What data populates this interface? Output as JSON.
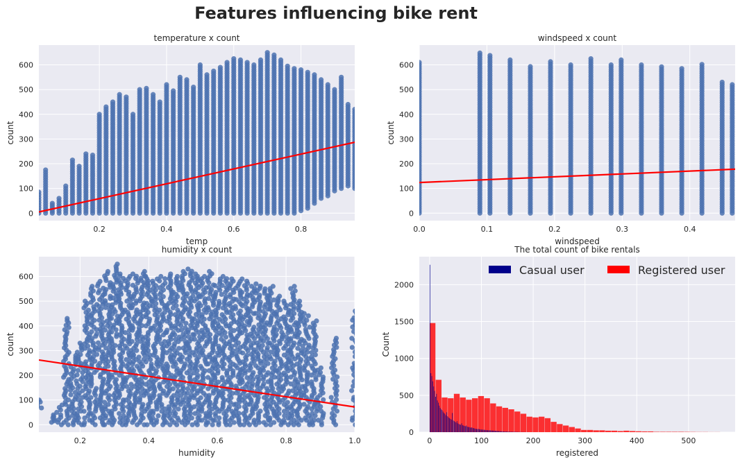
{
  "title": "Features influencing bike rent",
  "colors": {
    "scatter": "#4c72b0",
    "regression": "#ff0000",
    "casual": "#00008b",
    "registered": "#ff0000",
    "panel_bg": "#eaeaf2",
    "grid": "#ffffff"
  },
  "chart_data": [
    {
      "type": "scatter",
      "title": "temperature x count",
      "xlabel": "temp",
      "ylabel": "count",
      "xlim": [
        0.02,
        0.96
      ],
      "ylim": [
        -30,
        680
      ],
      "xticks": [
        0.2,
        0.4,
        0.6,
        0.8
      ],
      "yticks": [
        0,
        100,
        200,
        300,
        400,
        500,
        600
      ],
      "grid": true,
      "regression": {
        "x": [
          0.02,
          0.96
        ],
        "y": [
          5,
          287
        ]
      },
      "columns": [
        {
          "x": 0.02,
          "min": 0,
          "max": 85
        },
        {
          "x": 0.04,
          "min": 0,
          "max": 175
        },
        {
          "x": 0.06,
          "min": 0,
          "max": 40
        },
        {
          "x": 0.08,
          "min": 0,
          "max": 60
        },
        {
          "x": 0.1,
          "min": 0,
          "max": 110
        },
        {
          "x": 0.12,
          "min": 0,
          "max": 215
        },
        {
          "x": 0.14,
          "min": 0,
          "max": 190
        },
        {
          "x": 0.16,
          "min": 0,
          "max": 240
        },
        {
          "x": 0.18,
          "min": 0,
          "max": 235
        },
        {
          "x": 0.2,
          "min": 0,
          "max": 400
        },
        {
          "x": 0.22,
          "min": 0,
          "max": 430
        },
        {
          "x": 0.24,
          "min": 0,
          "max": 450
        },
        {
          "x": 0.26,
          "min": 0,
          "max": 480
        },
        {
          "x": 0.28,
          "min": 0,
          "max": 470
        },
        {
          "x": 0.3,
          "min": 0,
          "max": 400
        },
        {
          "x": 0.32,
          "min": 0,
          "max": 500
        },
        {
          "x": 0.34,
          "min": 0,
          "max": 505
        },
        {
          "x": 0.36,
          "min": 0,
          "max": 480
        },
        {
          "x": 0.38,
          "min": 0,
          "max": 450
        },
        {
          "x": 0.4,
          "min": 0,
          "max": 520
        },
        {
          "x": 0.42,
          "min": 0,
          "max": 495
        },
        {
          "x": 0.44,
          "min": 0,
          "max": 550
        },
        {
          "x": 0.46,
          "min": 0,
          "max": 540
        },
        {
          "x": 0.48,
          "min": 0,
          "max": 510
        },
        {
          "x": 0.5,
          "min": 0,
          "max": 600
        },
        {
          "x": 0.52,
          "min": 0,
          "max": 560
        },
        {
          "x": 0.54,
          "min": 0,
          "max": 575
        },
        {
          "x": 0.56,
          "min": 0,
          "max": 590
        },
        {
          "x": 0.58,
          "min": 0,
          "max": 610
        },
        {
          "x": 0.6,
          "min": 0,
          "max": 625
        },
        {
          "x": 0.62,
          "min": 0,
          "max": 620
        },
        {
          "x": 0.64,
          "min": 0,
          "max": 610
        },
        {
          "x": 0.66,
          "min": 0,
          "max": 600
        },
        {
          "x": 0.68,
          "min": 0,
          "max": 620
        },
        {
          "x": 0.7,
          "min": 0,
          "max": 650
        },
        {
          "x": 0.72,
          "min": 0,
          "max": 640
        },
        {
          "x": 0.74,
          "min": 0,
          "max": 620
        },
        {
          "x": 0.76,
          "min": 0,
          "max": 595
        },
        {
          "x": 0.78,
          "min": 0,
          "max": 585
        },
        {
          "x": 0.8,
          "min": 10,
          "max": 580
        },
        {
          "x": 0.82,
          "min": 20,
          "max": 570
        },
        {
          "x": 0.84,
          "min": 40,
          "max": 560
        },
        {
          "x": 0.86,
          "min": 60,
          "max": 540
        },
        {
          "x": 0.88,
          "min": 70,
          "max": 520
        },
        {
          "x": 0.9,
          "min": 90,
          "max": 500
        },
        {
          "x": 0.92,
          "min": 100,
          "max": 550
        },
        {
          "x": 0.94,
          "min": 110,
          "max": 440
        },
        {
          "x": 0.96,
          "min": 100,
          "max": 420
        }
      ]
    },
    {
      "type": "scatter",
      "title": "windspeed x count",
      "xlabel": "windspeed",
      "ylabel": "count",
      "xlim": [
        0,
        0.467
      ],
      "ylim": [
        -30,
        680
      ],
      "xticks": [
        0.0,
        0.1,
        0.2,
        0.3,
        0.4
      ],
      "yticks": [
        0,
        100,
        200,
        300,
        400,
        500,
        600
      ],
      "grid": true,
      "regression": {
        "x": [
          0,
          0.467
        ],
        "y": [
          124,
          178
        ]
      },
      "columns": [
        {
          "x": 0.0,
          "min": 0,
          "max": 610
        },
        {
          "x": 0.0896,
          "min": 0,
          "max": 648
        },
        {
          "x": 0.1045,
          "min": 0,
          "max": 638
        },
        {
          "x": 0.1343,
          "min": 0,
          "max": 620
        },
        {
          "x": 0.1642,
          "min": 0,
          "max": 593
        },
        {
          "x": 0.194,
          "min": 0,
          "max": 613
        },
        {
          "x": 0.2239,
          "min": 0,
          "max": 600
        },
        {
          "x": 0.2537,
          "min": 0,
          "max": 625
        },
        {
          "x": 0.2836,
          "min": 0,
          "max": 600
        },
        {
          "x": 0.2985,
          "min": 0,
          "max": 620
        },
        {
          "x": 0.3284,
          "min": 0,
          "max": 600
        },
        {
          "x": 0.3582,
          "min": 0,
          "max": 592
        },
        {
          "x": 0.3881,
          "min": 0,
          "max": 585
        },
        {
          "x": 0.4179,
          "min": 0,
          "max": 602
        },
        {
          "x": 0.4478,
          "min": 0,
          "max": 530
        },
        {
          "x": 0.4627,
          "min": 0,
          "max": 520
        }
      ]
    },
    {
      "type": "scatter",
      "title": "humidity x count",
      "xlabel": "humidity",
      "ylabel": "count",
      "xlim": [
        0.08,
        1.0
      ],
      "ylim": [
        -30,
        680
      ],
      "xticks": [
        0.2,
        0.4,
        0.6,
        0.8,
        1.0
      ],
      "yticks": [
        0,
        100,
        200,
        300,
        400,
        500,
        600
      ],
      "grid": true,
      "regression": {
        "x": [
          0.08,
          1.0
        ],
        "y": [
          262,
          72
        ]
      },
      "columns": [
        {
          "x": 0.08,
          "min": 60,
          "max": 100
        },
        {
          "x": 0.12,
          "min": 10,
          "max": 40
        },
        {
          "x": 0.14,
          "min": 0,
          "max": 80
        },
        {
          "x": 0.16,
          "min": 0,
          "max": 430
        },
        {
          "x": 0.18,
          "min": 0,
          "max": 280
        },
        {
          "x": 0.2,
          "min": 0,
          "max": 330
        },
        {
          "x": 0.22,
          "min": 0,
          "max": 500
        },
        {
          "x": 0.24,
          "min": 0,
          "max": 560
        },
        {
          "x": 0.26,
          "min": 0,
          "max": 580
        },
        {
          "x": 0.28,
          "min": 0,
          "max": 620
        },
        {
          "x": 0.3,
          "min": 0,
          "max": 650
        },
        {
          "x": 0.32,
          "min": 0,
          "max": 610
        },
        {
          "x": 0.34,
          "min": 0,
          "max": 600
        },
        {
          "x": 0.36,
          "min": 0,
          "max": 610
        },
        {
          "x": 0.38,
          "min": 0,
          "max": 620
        },
        {
          "x": 0.4,
          "min": 0,
          "max": 600
        },
        {
          "x": 0.42,
          "min": 0,
          "max": 590
        },
        {
          "x": 0.44,
          "min": 0,
          "max": 600
        },
        {
          "x": 0.46,
          "min": 0,
          "max": 610
        },
        {
          "x": 0.48,
          "min": 0,
          "max": 600
        },
        {
          "x": 0.5,
          "min": 0,
          "max": 620
        },
        {
          "x": 0.52,
          "min": 0,
          "max": 630
        },
        {
          "x": 0.54,
          "min": 0,
          "max": 610
        },
        {
          "x": 0.56,
          "min": 0,
          "max": 600
        },
        {
          "x": 0.58,
          "min": 0,
          "max": 620
        },
        {
          "x": 0.6,
          "min": 0,
          "max": 590
        },
        {
          "x": 0.62,
          "min": 0,
          "max": 600
        },
        {
          "x": 0.64,
          "min": 0,
          "max": 590
        },
        {
          "x": 0.66,
          "min": 0,
          "max": 580
        },
        {
          "x": 0.68,
          "min": 0,
          "max": 590
        },
        {
          "x": 0.7,
          "min": 0,
          "max": 560
        },
        {
          "x": 0.72,
          "min": 0,
          "max": 570
        },
        {
          "x": 0.74,
          "min": 0,
          "max": 550
        },
        {
          "x": 0.76,
          "min": 0,
          "max": 560
        },
        {
          "x": 0.78,
          "min": 0,
          "max": 520
        },
        {
          "x": 0.8,
          "min": 0,
          "max": 500
        },
        {
          "x": 0.82,
          "min": 0,
          "max": 560
        },
        {
          "x": 0.84,
          "min": 0,
          "max": 500
        },
        {
          "x": 0.86,
          "min": 0,
          "max": 450
        },
        {
          "x": 0.88,
          "min": 0,
          "max": 420
        },
        {
          "x": 0.9,
          "min": 0,
          "max": 230
        },
        {
          "x": 0.94,
          "min": 0,
          "max": 350
        },
        {
          "x": 1.0,
          "min": 0,
          "max": 460
        }
      ]
    },
    {
      "type": "bar",
      "title": "The total count of bike rentals",
      "xlabel": "registered",
      "ylabel": "Count",
      "xlim": [
        -20,
        590
      ],
      "ylim": [
        0,
        2380
      ],
      "xticks": [
        0,
        100,
        200,
        300,
        400,
        500
      ],
      "yticks": [
        0,
        500,
        1000,
        1500,
        2000
      ],
      "grid": true,
      "legend_position": "top-right",
      "series": [
        {
          "name": "Casual user",
          "color": "#00008b",
          "bin_width": 1.8,
          "start": 0,
          "values": [
            2270,
            800,
            760,
            690,
            620,
            560,
            480,
            520,
            430,
            400,
            360,
            330,
            310,
            300,
            280,
            260,
            250,
            230,
            270,
            215,
            200,
            190,
            180,
            170,
            260,
            160,
            150,
            140,
            130,
            150,
            120,
            110,
            105,
            100,
            120,
            95,
            90,
            85,
            80,
            90,
            75,
            70,
            70,
            65,
            60,
            65,
            55,
            55,
            50,
            45,
            45,
            40,
            45,
            40,
            38,
            36,
            35,
            33,
            32,
            30,
            29,
            28,
            27,
            26,
            25,
            24,
            23,
            22,
            21,
            20,
            19,
            18,
            17,
            16,
            15,
            14,
            13,
            12,
            11,
            10,
            10,
            9,
            9,
            8,
            8,
            7,
            7,
            6,
            6,
            5,
            5,
            5,
            4,
            4,
            4,
            3,
            3,
            3,
            2,
            2,
            2,
            2,
            1,
            1,
            1,
            1
          ]
        },
        {
          "name": "Registered user",
          "color": "#ff0000",
          "bin_width": 11.7,
          "start": 0,
          "values": [
            1480,
            710,
            470,
            460,
            520,
            470,
            440,
            460,
            490,
            460,
            390,
            350,
            330,
            310,
            280,
            250,
            210,
            200,
            210,
            190,
            140,
            110,
            90,
            70,
            50,
            30,
            30,
            25,
            25,
            20,
            20,
            15,
            20,
            15,
            12,
            10,
            10,
            5,
            5,
            5,
            5,
            5,
            4,
            3,
            2,
            2,
            1,
            1
          ]
        }
      ]
    }
  ]
}
